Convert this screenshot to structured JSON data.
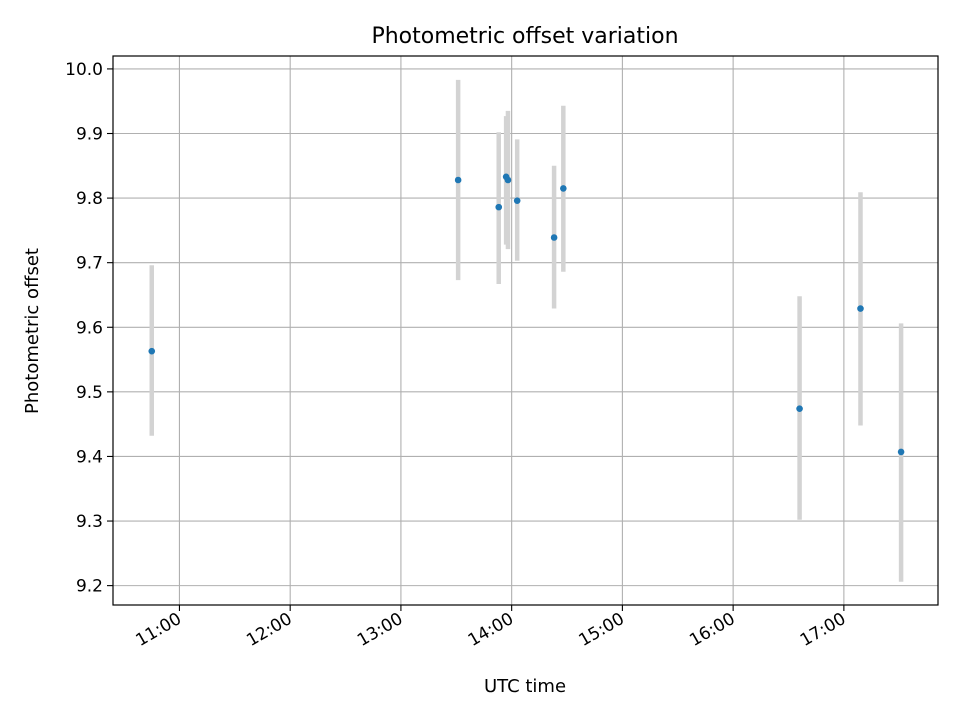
{
  "chart_data": {
    "type": "scatter",
    "title": "Photometric offset variation",
    "xlabel": "UTC time",
    "ylabel": "Photometric offset",
    "x_tick_labels": [
      "11:00",
      "12:00",
      "13:00",
      "14:00",
      "15:00",
      "16:00",
      "17:00"
    ],
    "xlim": [
      "10:24",
      "17:51"
    ],
    "ylim": [
      9.17,
      10.02
    ],
    "y_ticks": [
      9.2,
      9.3,
      9.4,
      9.5,
      9.6,
      9.7,
      9.8,
      9.9,
      10.0
    ],
    "y_tick_labels": [
      "9.2",
      "9.3",
      "9.4",
      "9.5",
      "9.6",
      "9.7",
      "9.8",
      "9.9",
      "10.0"
    ],
    "grid": true,
    "points": [
      {
        "x": "10:45",
        "y": 9.563,
        "ylow": 9.432,
        "yhigh": 9.696
      },
      {
        "x": "13:31",
        "y": 9.828,
        "ylow": 9.673,
        "yhigh": 9.983
      },
      {
        "x": "13:53",
        "y": 9.786,
        "ylow": 9.667,
        "yhigh": 9.902
      },
      {
        "x": "13:57",
        "y": 9.833,
        "ylow": 9.728,
        "yhigh": 9.927
      },
      {
        "x": "13:58",
        "y": 9.828,
        "ylow": 9.721,
        "yhigh": 9.935
      },
      {
        "x": "14:03",
        "y": 9.796,
        "ylow": 9.703,
        "yhigh": 9.891
      },
      {
        "x": "14:23",
        "y": 9.739,
        "ylow": 9.629,
        "yhigh": 9.85
      },
      {
        "x": "14:28",
        "y": 9.815,
        "ylow": 9.686,
        "yhigh": 9.943
      },
      {
        "x": "16:36",
        "y": 9.474,
        "ylow": 9.302,
        "yhigh": 9.648
      },
      {
        "x": "17:09",
        "y": 9.629,
        "ylow": 9.448,
        "yhigh": 9.809
      },
      {
        "x": "17:31",
        "y": 9.407,
        "ylow": 9.206,
        "yhigh": 9.606
      }
    ],
    "colors": {
      "marker": "#1f77b4",
      "errorbar": "#d3d3d3",
      "grid": "#b0b0b0",
      "axes": "#000000"
    }
  }
}
